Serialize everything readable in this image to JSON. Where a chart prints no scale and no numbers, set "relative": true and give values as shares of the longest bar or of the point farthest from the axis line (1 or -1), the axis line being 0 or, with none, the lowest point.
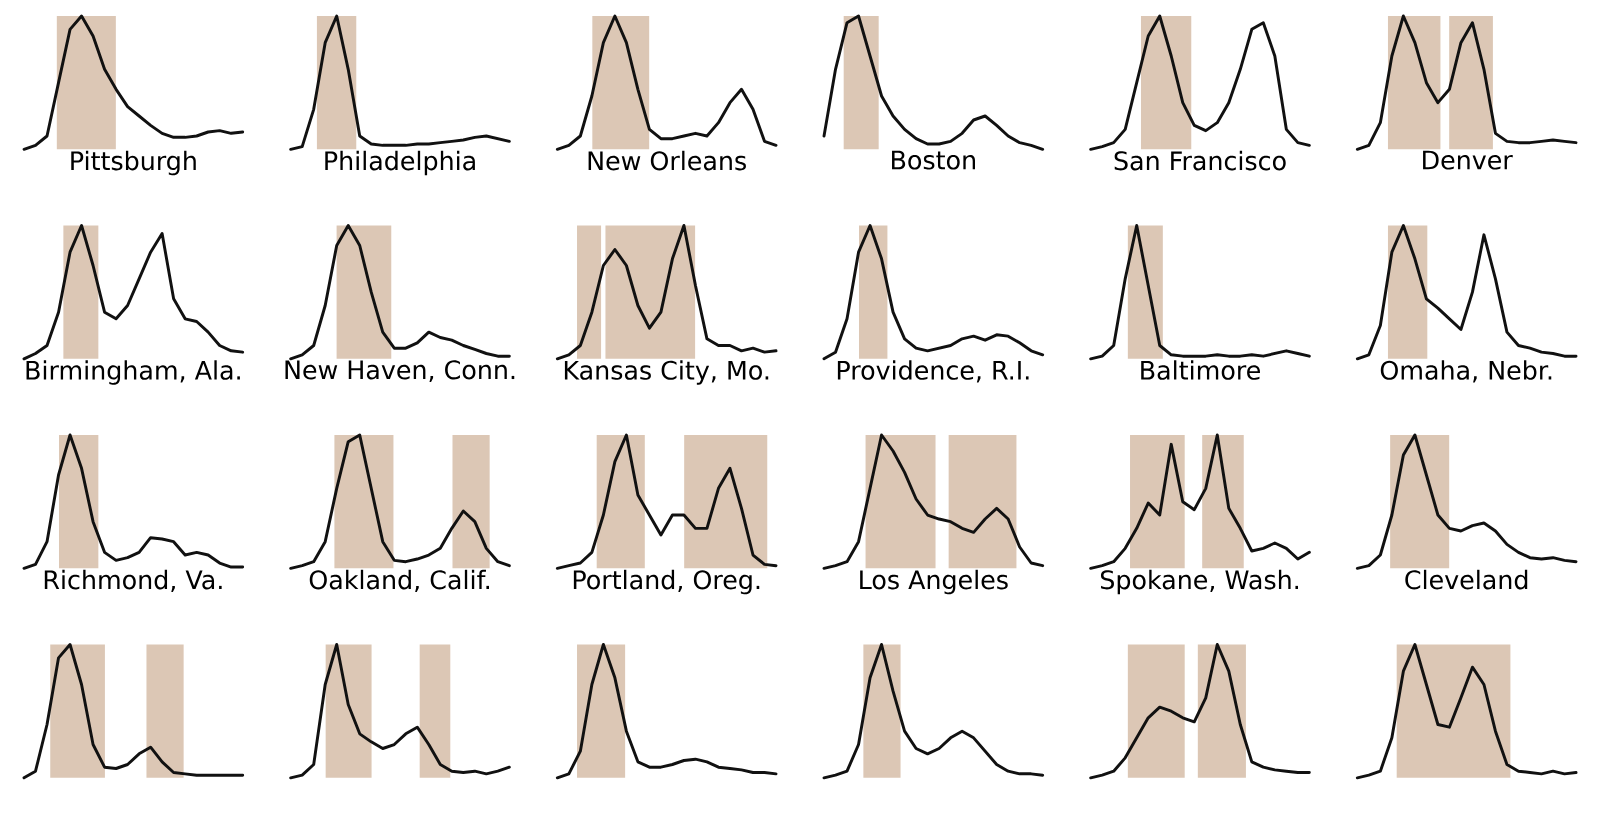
{
  "chart_data": [
    {
      "type": "line",
      "title": "Pittsburgh",
      "relative": true,
      "categories": [
        null,
        null,
        null,
        null,
        null,
        null,
        null,
        null,
        null,
        null,
        null,
        null,
        null,
        null,
        null,
        null,
        null,
        null,
        null,
        null
      ],
      "series": [
        {
          "color": "#111111",
          "values": [
            0,
            0.03,
            0.1,
            0.5,
            0.9,
            1,
            0.85,
            0.6,
            0.45,
            0.32,
            0.25,
            0.18,
            0.12,
            0.09,
            0.09,
            0.1,
            0.13,
            0.14,
            0.12,
            0.13
          ]
        }
      ]
    },
    {
      "type": "line",
      "title": "Philadelphia",
      "relative": true,
      "categories": [
        null,
        null,
        null,
        null,
        null,
        null,
        null,
        null,
        null,
        null,
        null,
        null,
        null,
        null,
        null,
        null,
        null,
        null,
        null,
        null
      ],
      "series": [
        {
          "color": "#111111",
          "values": [
            0,
            0.02,
            0.3,
            0.8,
            1,
            0.6,
            0.1,
            0.04,
            0.03,
            0.03,
            0.03,
            0.04,
            0.04,
            0.05,
            0.06,
            0.07,
            0.09,
            0.1,
            0.08,
            0.06
          ]
        }
      ]
    },
    {
      "type": "line",
      "title": "New Orleans",
      "relative": true,
      "categories": [
        null,
        null,
        null,
        null,
        null,
        null,
        null,
        null,
        null,
        null,
        null,
        null,
        null,
        null,
        null,
        null,
        null,
        null,
        null,
        null
      ],
      "series": [
        {
          "color": "#111111",
          "values": [
            0,
            0.03,
            0.1,
            0.4,
            0.8,
            1,
            0.8,
            0.45,
            0.15,
            0.08,
            0.08,
            0.1,
            0.12,
            0.1,
            0.2,
            0.35,
            0.45,
            0.3,
            0.06,
            0.03
          ]
        }
      ]
    },
    {
      "type": "line",
      "title": "Boston",
      "relative": true,
      "categories": [
        null,
        null,
        null,
        null,
        null,
        null,
        null,
        null,
        null,
        null,
        null,
        null,
        null,
        null,
        null,
        null,
        null,
        null,
        null,
        null
      ],
      "series": [
        {
          "color": "#111111",
          "values": [
            0.1,
            0.6,
            0.95,
            1,
            0.7,
            0.4,
            0.25,
            0.15,
            0.08,
            0.04,
            0.04,
            0.06,
            0.12,
            0.22,
            0.25,
            0.18,
            0.1,
            0.05,
            0.03,
            0
          ]
        }
      ]
    },
    {
      "type": "line",
      "title": "San Francisco",
      "relative": true,
      "categories": [
        null,
        null,
        null,
        null,
        null,
        null,
        null,
        null,
        null,
        null,
        null,
        null,
        null,
        null,
        null,
        null,
        null,
        null,
        null,
        null
      ],
      "series": [
        {
          "color": "#111111",
          "values": [
            0,
            0.02,
            0.05,
            0.15,
            0.5,
            0.85,
            1,
            0.7,
            0.35,
            0.18,
            0.14,
            0.2,
            0.35,
            0.6,
            0.9,
            0.95,
            0.7,
            0.15,
            0.05,
            0.03
          ]
        }
      ]
    },
    {
      "type": "line",
      "title": "Denver",
      "relative": true,
      "categories": [
        null,
        null,
        null,
        null,
        null,
        null,
        null,
        null,
        null,
        null,
        null,
        null,
        null,
        null,
        null,
        null,
        null,
        null,
        null,
        null
      ],
      "series": [
        {
          "color": "#111111",
          "values": [
            0,
            0.03,
            0.2,
            0.7,
            1,
            0.8,
            0.5,
            0.35,
            0.45,
            0.8,
            0.95,
            0.6,
            0.12,
            0.06,
            0.05,
            0.05,
            0.06,
            0.07,
            0.06,
            0.05
          ]
        }
      ]
    },
    {
      "type": "line",
      "title": "Birmingham, Ala.",
      "relative": true,
      "categories": [
        null,
        null,
        null,
        null,
        null,
        null,
        null,
        null,
        null,
        null,
        null,
        null,
        null,
        null,
        null,
        null,
        null,
        null,
        null,
        null
      ],
      "series": [
        {
          "color": "#111111",
          "values": [
            0,
            0.04,
            0.1,
            0.35,
            0.8,
            1,
            0.7,
            0.35,
            0.3,
            0.4,
            0.6,
            0.8,
            0.94,
            0.45,
            0.3,
            0.28,
            0.2,
            0.1,
            0.06,
            0.05
          ]
        }
      ]
    },
    {
      "type": "line",
      "title": "New Haven, Conn.",
      "relative": true,
      "categories": [
        null,
        null,
        null,
        null,
        null,
        null,
        null,
        null,
        null,
        null,
        null,
        null,
        null,
        null,
        null,
        null,
        null,
        null,
        null,
        null
      ],
      "series": [
        {
          "color": "#111111",
          "values": [
            0,
            0.03,
            0.1,
            0.4,
            0.85,
            1,
            0.85,
            0.5,
            0.2,
            0.08,
            0.08,
            0.12,
            0.2,
            0.16,
            0.14,
            0.1,
            0.07,
            0.04,
            0.02,
            0.02
          ]
        }
      ]
    },
    {
      "type": "line",
      "title": "Kansas City, Mo.",
      "relative": true,
      "categories": [
        null,
        null,
        null,
        null,
        null,
        null,
        null,
        null,
        null,
        null,
        null,
        null,
        null,
        null,
        null,
        null,
        null,
        null,
        null,
        null
      ],
      "series": [
        {
          "color": "#111111",
          "values": [
            0,
            0.03,
            0.1,
            0.35,
            0.7,
            0.82,
            0.7,
            0.4,
            0.23,
            0.35,
            0.75,
            1,
            0.55,
            0.15,
            0.1,
            0.1,
            0.06,
            0.08,
            0.05,
            0.06
          ]
        }
      ]
    },
    {
      "type": "line",
      "title": "Providence, R.I.",
      "relative": true,
      "categories": [
        null,
        null,
        null,
        null,
        null,
        null,
        null,
        null,
        null,
        null,
        null,
        null,
        null,
        null,
        null,
        null,
        null,
        null,
        null,
        null
      ],
      "series": [
        {
          "color": "#111111",
          "values": [
            0,
            0.05,
            0.3,
            0.8,
            1,
            0.75,
            0.35,
            0.15,
            0.08,
            0.06,
            0.08,
            0.1,
            0.15,
            0.17,
            0.14,
            0.18,
            0.17,
            0.12,
            0.06,
            0.03
          ]
        }
      ]
    },
    {
      "type": "line",
      "title": "Baltimore",
      "relative": true,
      "categories": [
        null,
        null,
        null,
        null,
        null,
        null,
        null,
        null,
        null,
        null,
        null,
        null,
        null,
        null,
        null,
        null,
        null,
        null,
        null,
        null
      ],
      "series": [
        {
          "color": "#111111",
          "values": [
            0,
            0.02,
            0.1,
            0.6,
            1,
            0.55,
            0.1,
            0.03,
            0.02,
            0.02,
            0.02,
            0.03,
            0.02,
            0.02,
            0.03,
            0.02,
            0.04,
            0.06,
            0.04,
            0.02
          ]
        }
      ]
    },
    {
      "type": "line",
      "title": "Omaha, Nebr.",
      "relative": true,
      "categories": [
        null,
        null,
        null,
        null,
        null,
        null,
        null,
        null,
        null,
        null,
        null,
        null,
        null,
        null,
        null,
        null,
        null,
        null,
        null,
        null
      ],
      "series": [
        {
          "color": "#111111",
          "values": [
            0,
            0.03,
            0.25,
            0.8,
            1,
            0.75,
            0.45,
            0.38,
            0.3,
            0.22,
            0.5,
            0.93,
            0.6,
            0.2,
            0.1,
            0.08,
            0.05,
            0.04,
            0.02,
            0.02
          ]
        }
      ]
    },
    {
      "type": "line",
      "title": "Richmond, Va.",
      "relative": true,
      "categories": [
        null,
        null,
        null,
        null,
        null,
        null,
        null,
        null,
        null,
        null,
        null,
        null,
        null,
        null,
        null,
        null,
        null,
        null,
        null,
        null
      ],
      "series": [
        {
          "color": "#111111",
          "values": [
            0,
            0.03,
            0.2,
            0.7,
            1,
            0.75,
            0.35,
            0.12,
            0.06,
            0.08,
            0.12,
            0.23,
            0.22,
            0.2,
            0.1,
            0.12,
            0.1,
            0.04,
            0.01,
            0.01
          ]
        }
      ]
    },
    {
      "type": "line",
      "title": "Oakland, Calif.",
      "relative": true,
      "categories": [
        null,
        null,
        null,
        null,
        null,
        null,
        null,
        null,
        null,
        null,
        null,
        null,
        null,
        null,
        null,
        null,
        null,
        null,
        null,
        null
      ],
      "series": [
        {
          "color": "#111111",
          "values": [
            0,
            0.02,
            0.05,
            0.2,
            0.6,
            0.95,
            1,
            0.6,
            0.2,
            0.06,
            0.05,
            0.07,
            0.1,
            0.15,
            0.3,
            0.43,
            0.35,
            0.15,
            0.05,
            0.02
          ]
        }
      ]
    },
    {
      "type": "line",
      "title": "Portland, Oreg.",
      "relative": true,
      "categories": [
        null,
        null,
        null,
        null,
        null,
        null,
        null,
        null,
        null,
        null,
        null,
        null,
        null,
        null,
        null,
        null,
        null,
        null,
        null,
        null
      ],
      "series": [
        {
          "color": "#111111",
          "values": [
            0,
            0.02,
            0.04,
            0.12,
            0.4,
            0.8,
            1,
            0.55,
            0.4,
            0.25,
            0.4,
            0.4,
            0.3,
            0.3,
            0.6,
            0.75,
            0.45,
            0.1,
            0.03,
            0.02
          ]
        }
      ]
    },
    {
      "type": "line",
      "title": "Los Angeles",
      "relative": true,
      "categories": [
        null,
        null,
        null,
        null,
        null,
        null,
        null,
        null,
        null,
        null,
        null,
        null,
        null,
        null,
        null,
        null,
        null,
        null,
        null,
        null
      ],
      "series": [
        {
          "color": "#111111",
          "values": [
            0,
            0.02,
            0.05,
            0.2,
            0.6,
            1,
            0.88,
            0.72,
            0.52,
            0.4,
            0.37,
            0.35,
            0.3,
            0.27,
            0.37,
            0.45,
            0.37,
            0.16,
            0.04,
            0.02
          ]
        }
      ]
    },
    {
      "type": "line",
      "title": "Spokane, Wash.",
      "relative": true,
      "categories": [
        null,
        null,
        null,
        null,
        null,
        null,
        null,
        null,
        null,
        null,
        null,
        null,
        null,
        null,
        null,
        null,
        null,
        null,
        null,
        null
      ],
      "series": [
        {
          "color": "#111111",
          "values": [
            0,
            0.02,
            0.05,
            0.15,
            0.3,
            0.49,
            0.4,
            0.93,
            0.5,
            0.44,
            0.6,
            1,
            0.45,
            0.3,
            0.13,
            0.15,
            0.19,
            0.15,
            0.07,
            0.12
          ]
        }
      ]
    },
    {
      "type": "line",
      "title": "Cleveland",
      "relative": true,
      "categories": [
        null,
        null,
        null,
        null,
        null,
        null,
        null,
        null,
        null,
        null,
        null,
        null,
        null,
        null,
        null,
        null,
        null,
        null,
        null,
        null
      ],
      "series": [
        {
          "color": "#111111",
          "values": [
            0,
            0.02,
            0.1,
            0.4,
            0.85,
            1,
            0.7,
            0.4,
            0.3,
            0.28,
            0.32,
            0.34,
            0.28,
            0.18,
            0.12,
            0.08,
            0.07,
            0.08,
            0.06,
            0.05
          ]
        }
      ]
    },
    {
      "type": "line",
      "relative": true,
      "categories": [
        null,
        null,
        null,
        null,
        null,
        null,
        null,
        null,
        null,
        null,
        null,
        null,
        null,
        null,
        null,
        null,
        null,
        null,
        null,
        null
      ],
      "series": [
        {
          "color": "#111111",
          "values": [
            0,
            0.05,
            0.4,
            0.9,
            1,
            0.7,
            0.25,
            0.08,
            0.07,
            0.1,
            0.18,
            0.23,
            0.12,
            0.04,
            0.03,
            0.02,
            0.02,
            0.02,
            0.02,
            0.02
          ]
        }
      ]
    },
    {
      "type": "line",
      "relative": true,
      "categories": [
        null,
        null,
        null,
        null,
        null,
        null,
        null,
        null,
        null,
        null,
        null,
        null,
        null,
        null,
        null,
        null,
        null,
        null,
        null,
        null
      ],
      "series": [
        {
          "color": "#111111",
          "values": [
            0,
            0.02,
            0.1,
            0.7,
            1,
            0.55,
            0.33,
            0.27,
            0.22,
            0.25,
            0.33,
            0.38,
            0.25,
            0.1,
            0.05,
            0.04,
            0.05,
            0.03,
            0.05,
            0.08
          ]
        }
      ]
    },
    {
      "type": "line",
      "relative": true,
      "categories": [
        null,
        null,
        null,
        null,
        null,
        null,
        null,
        null,
        null,
        null,
        null,
        null,
        null,
        null,
        null,
        null,
        null,
        null,
        null,
        null
      ],
      "series": [
        {
          "color": "#111111",
          "values": [
            0,
            0.03,
            0.2,
            0.7,
            1,
            0.75,
            0.35,
            0.12,
            0.08,
            0.08,
            0.1,
            0.13,
            0.14,
            0.12,
            0.08,
            0.07,
            0.06,
            0.04,
            0.04,
            0.03
          ]
        }
      ]
    },
    {
      "type": "line",
      "relative": true,
      "categories": [
        null,
        null,
        null,
        null,
        null,
        null,
        null,
        null,
        null,
        null,
        null,
        null,
        null,
        null,
        null,
        null,
        null,
        null,
        null,
        null
      ],
      "series": [
        {
          "color": "#111111",
          "values": [
            0,
            0.02,
            0.05,
            0.25,
            0.75,
            1,
            0.65,
            0.35,
            0.22,
            0.18,
            0.22,
            0.3,
            0.35,
            0.3,
            0.2,
            0.1,
            0.05,
            0.03,
            0.03,
            0.02
          ]
        }
      ]
    },
    {
      "type": "line",
      "relative": true,
      "categories": [
        null,
        null,
        null,
        null,
        null,
        null,
        null,
        null,
        null,
        null,
        null,
        null,
        null,
        null,
        null,
        null,
        null,
        null,
        null,
        null
      ],
      "series": [
        {
          "color": "#111111",
          "values": [
            0,
            0.02,
            0.05,
            0.15,
            0.3,
            0.45,
            0.53,
            0.5,
            0.45,
            0.42,
            0.6,
            1,
            0.8,
            0.4,
            0.12,
            0.08,
            0.06,
            0.05,
            0.04,
            0.04
          ]
        }
      ]
    },
    {
      "type": "line",
      "relative": true,
      "categories": [
        null,
        null,
        null,
        null,
        null,
        null,
        null,
        null,
        null,
        null,
        null,
        null,
        null,
        null,
        null,
        null,
        null,
        null,
        null,
        null
      ],
      "series": [
        {
          "color": "#111111",
          "values": [
            0,
            0.02,
            0.05,
            0.3,
            0.8,
            1,
            0.7,
            0.4,
            0.38,
            0.6,
            0.83,
            0.7,
            0.35,
            0.1,
            0.05,
            0.04,
            0.03,
            0.05,
            0.03,
            0.04
          ]
        }
      ]
    }
  ]
}
